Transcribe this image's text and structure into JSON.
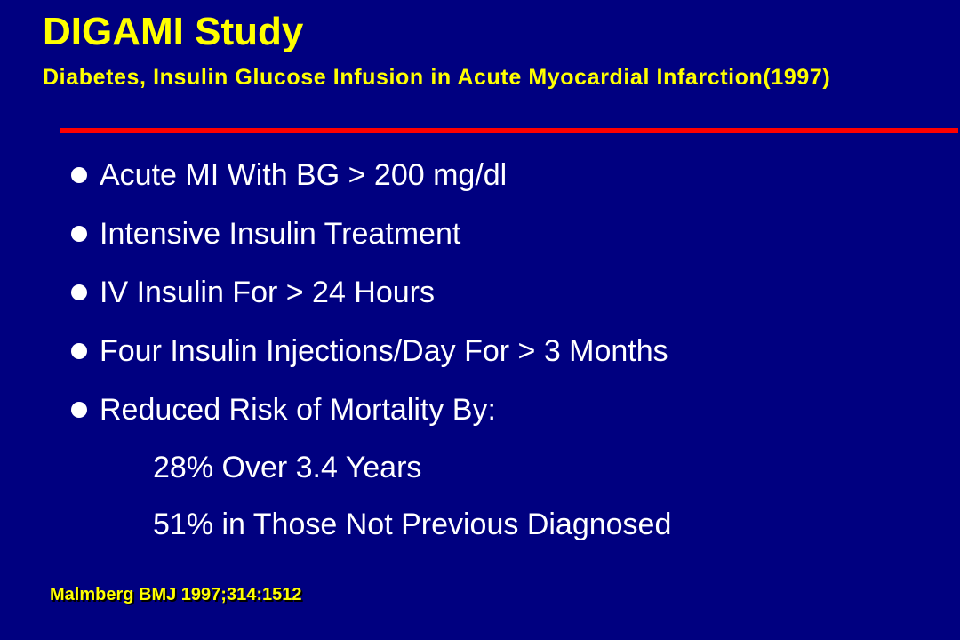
{
  "slide": {
    "title": "DIGAMI Study",
    "subtitle": "Diabetes, Insulin Glucose Infusion in Acute Myocardial Infarction(1997)",
    "bullets": [
      "Acute MI With BG > 200 mg/dl",
      "Intensive Insulin Treatment",
      "IV Insulin For > 24 Hours",
      "Four Insulin Injections/Day For > 3 Months",
      "Reduced Risk of Mortality By:"
    ],
    "sub_items": [
      "28% Over 3.4 Years",
      "51% in Those Not Previous Diagnosed"
    ],
    "citation": "Malmberg BMJ 1997;314:1512"
  },
  "colors": {
    "background": "#000080",
    "title": "#FFFF00",
    "divider": "#FF0000",
    "body_text": "#FFFFFF"
  },
  "icons": {
    "bullet": "bullet-dot-icon"
  }
}
